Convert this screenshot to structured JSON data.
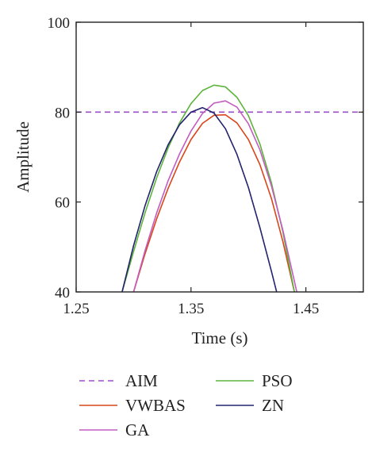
{
  "chart_data": {
    "type": "line",
    "xlabel": "Time (s)",
    "ylabel": "Amplitude",
    "xlim": [
      1.25,
      1.5
    ],
    "ylim": [
      40,
      100
    ],
    "xticks": [
      1.25,
      1.35,
      1.45
    ],
    "xtick_labels": [
      "1.25",
      "1.35",
      "1.45"
    ],
    "yticks": [
      40,
      60,
      80,
      100
    ],
    "ytick_labels": [
      "40",
      "60",
      "80",
      "100"
    ],
    "grid": false,
    "legend_position": "bottom",
    "series": [
      {
        "name": "AIM",
        "color": "#9b4fc9",
        "dashed": true,
        "x": [
          1.25,
          1.5
        ],
        "y": [
          80,
          80
        ]
      },
      {
        "name": "VWBAS",
        "color": "#d9461c",
        "dashed": false,
        "x": [
          1.3,
          1.31,
          1.32,
          1.33,
          1.34,
          1.35,
          1.36,
          1.37,
          1.38,
          1.39,
          1.4,
          1.41,
          1.42,
          1.43,
          1.44
        ],
        "y": [
          40,
          48.5,
          56.2,
          63.0,
          68.9,
          73.9,
          77.5,
          79.3,
          79.4,
          77.6,
          73.9,
          68.3,
          60.8,
          51.2,
          40
        ]
      },
      {
        "name": "PSO",
        "color": "#5db33c",
        "dashed": false,
        "x": [
          1.29,
          1.3,
          1.31,
          1.32,
          1.33,
          1.34,
          1.35,
          1.36,
          1.37,
          1.38,
          1.39,
          1.4,
          1.41,
          1.42,
          1.43,
          1.44
        ],
        "y": [
          40,
          49.0,
          57.6,
          65.3,
          72.0,
          77.6,
          81.9,
          84.8,
          86.0,
          85.6,
          83.3,
          79.2,
          72.9,
          64.3,
          53.3,
          40
        ]
      },
      {
        "name": "GA",
        "color": "#c25dc0",
        "dashed": false,
        "x": [
          1.3,
          1.31,
          1.32,
          1.33,
          1.34,
          1.35,
          1.36,
          1.37,
          1.38,
          1.39,
          1.4,
          1.41,
          1.42,
          1.43,
          1.44,
          1.445
        ],
        "y": [
          40,
          49.2,
          57.5,
          64.7,
          70.7,
          75.8,
          79.7,
          82.0,
          82.5,
          81.1,
          77.4,
          71.6,
          63.6,
          53.7,
          42.4,
          36.6
        ]
      },
      {
        "name": "ZN",
        "color": "#23236e",
        "dashed": false,
        "x": [
          1.29,
          1.3,
          1.31,
          1.32,
          1.33,
          1.34,
          1.35,
          1.36,
          1.37,
          1.38,
          1.39,
          1.4,
          1.41,
          1.42,
          1.43,
          1.435
        ],
        "y": [
          40,
          50.3,
          59.2,
          66.7,
          72.7,
          77.2,
          80.0,
          81.0,
          79.8,
          76.3,
          70.6,
          63.2,
          54.3,
          44.6,
          34.5,
          29.4
        ]
      }
    ],
    "legend_order": [
      "AIM",
      "PSO",
      "VWBAS",
      "ZN",
      "GA"
    ]
  }
}
